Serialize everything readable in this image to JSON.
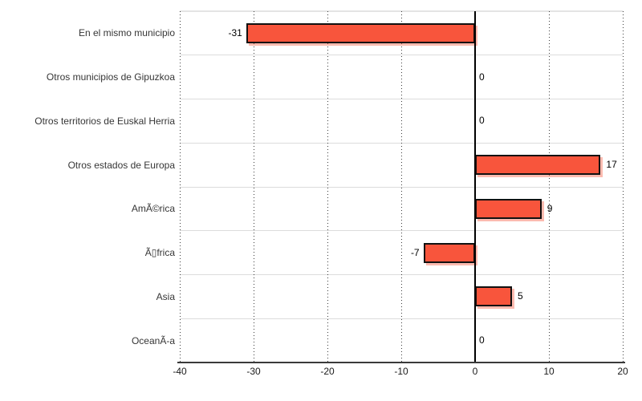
{
  "chart_data": {
    "type": "bar",
    "orientation": "horizontal",
    "title": "",
    "xlabel": "",
    "ylabel": "",
    "legend": "none",
    "grid": "vertical dotted gridlines at ticks, light horizontal category separators",
    "categories": [
      "En el mismo municipio",
      "Otros municipios de Gipuzkoa",
      "Otros territorios de Euskal Herria",
      "Otros estados de Europa",
      "AmÃ©rica",
      "Ã▯frica",
      "Asia",
      "OceanÃ-a"
    ],
    "values": [
      -31,
      0,
      0,
      17,
      9,
      -7,
      5,
      0
    ],
    "xlim": [
      -40,
      20
    ],
    "xticks": [
      -40,
      -30,
      -20,
      -10,
      0,
      10,
      20
    ]
  },
  "colors": {
    "bar_fill": "#f8553c",
    "bar_border": "#111111",
    "bar_shadow": "rgba(248,105,80,0.45)",
    "zero_line": "#000000",
    "axis_line": "#3a3a3a",
    "gridline": "#3c3c3c",
    "separator": "#dcdcdc",
    "plot_top_border": "#e4e4e4",
    "category_text": "#363636",
    "tick_text": "#1a1a1a",
    "value_text": "#000000",
    "background": "#ffffff"
  }
}
